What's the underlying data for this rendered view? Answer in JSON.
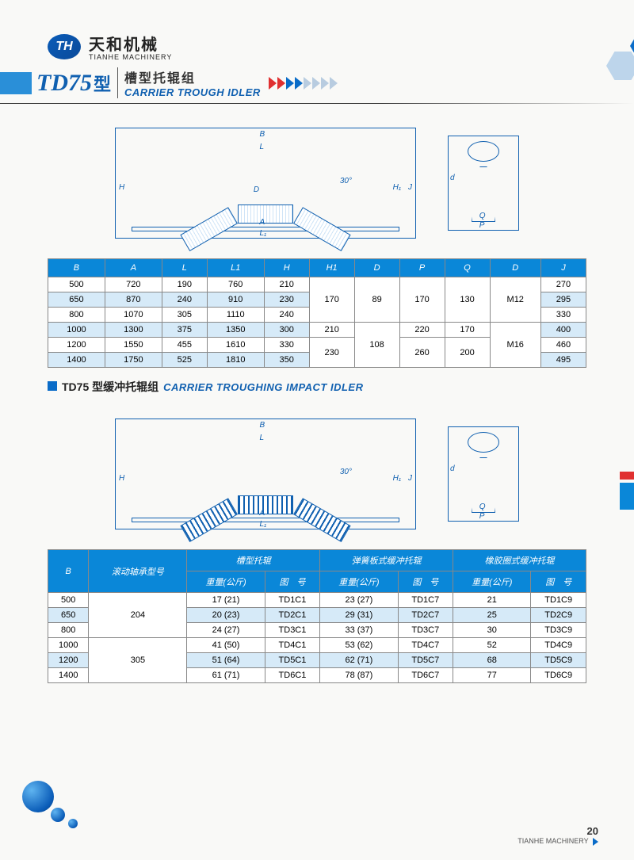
{
  "logo": {
    "badge": "TH",
    "zh": "天和机械",
    "en": "TIANHE MACHINERY"
  },
  "title": {
    "model": "TD75",
    "model_suffix": "型",
    "zh": "槽型托辊组",
    "en": "CARRIER TROUGH IDLER"
  },
  "chevron_colors": [
    "#e03030",
    "#e03030",
    "#0a6cc8",
    "#0a6cc8",
    "#b8cce0",
    "#b8cce0",
    "#b8cce0",
    "#b8cce0"
  ],
  "diagram1_labels": {
    "B": "B",
    "L": "L",
    "H": "H",
    "D": "D",
    "A": "A",
    "L1": "L₁",
    "H1": "H₁",
    "J": "J",
    "angle": "30°",
    "d": "d",
    "Q": "Q",
    "P": "P"
  },
  "table1": {
    "headers": [
      "B",
      "A",
      "L",
      "L1",
      "H",
      "H1",
      "D",
      "P",
      "Q",
      "D",
      "J"
    ],
    "rows": [
      [
        "500",
        "720",
        "190",
        "760",
        "210",
        "170",
        "89",
        "170",
        "130",
        "M12",
        "270"
      ],
      [
        "650",
        "870",
        "240",
        "910",
        "230",
        "170",
        "89",
        "170",
        "130",
        "M12",
        "295"
      ],
      [
        "800",
        "1070",
        "305",
        "1110",
        "240",
        "170",
        "89",
        "170",
        "130",
        "M12",
        "330"
      ],
      [
        "1000",
        "1300",
        "375",
        "1350",
        "300",
        "210",
        "108",
        "220",
        "170",
        "M16",
        "400"
      ],
      [
        "1200",
        "1550",
        "455",
        "1610",
        "330",
        "230",
        "108",
        "260",
        "200",
        "M16",
        "460"
      ],
      [
        "1400",
        "1750",
        "525",
        "1810",
        "350",
        "230",
        "108",
        "260",
        "200",
        "M16",
        "495"
      ]
    ],
    "merges": {
      "H1": [
        {
          "start": 0,
          "span": 3,
          "val": "170"
        },
        {
          "start": 3,
          "span": 1,
          "val": "210"
        },
        {
          "start": 4,
          "span": 2,
          "val": "230"
        }
      ],
      "Dcol": [
        {
          "start": 0,
          "span": 3,
          "val": "89"
        },
        {
          "start": 3,
          "span": 3,
          "val": "108"
        }
      ],
      "P": [
        {
          "start": 0,
          "span": 3,
          "val": "170"
        },
        {
          "start": 3,
          "span": 1,
          "val": "220"
        },
        {
          "start": 4,
          "span": 2,
          "val": "260"
        }
      ],
      "Q": [
        {
          "start": 0,
          "span": 3,
          "val": "130"
        },
        {
          "start": 3,
          "span": 1,
          "val": "170"
        },
        {
          "start": 4,
          "span": 2,
          "val": "200"
        }
      ],
      "D2": [
        {
          "start": 0,
          "span": 3,
          "val": "M12"
        },
        {
          "start": 3,
          "span": 3,
          "val": "M16"
        }
      ]
    },
    "alt_rows": [
      1,
      3,
      5
    ]
  },
  "section2": {
    "prefix": "TD75",
    "zh": "型缓冲托辊组",
    "en": "CARRIER TROUGHING IMPACT IDLER"
  },
  "table2": {
    "top_headers": [
      "B",
      "滚动轴承型号",
      "槽型托辊",
      "弹簧板式缓冲托辊",
      "橡胶圈式缓冲托辊"
    ],
    "sub_headers": [
      "重量(公斤)",
      "图　号",
      "重量(公斤)",
      "图　号",
      "重量(公斤)",
      "图　号"
    ],
    "rows": [
      {
        "B": "500",
        "bearing": "204",
        "w1": "17 (21)",
        "c1": "TD1C1",
        "w2": "23 (27)",
        "c2": "TD1C7",
        "w3": "21",
        "c3": "TD1C9"
      },
      {
        "B": "650",
        "bearing": "204",
        "w1": "20 (23)",
        "c1": "TD2C1",
        "w2": "29 (31)",
        "c2": "TD2C7",
        "w3": "25",
        "c3": "TD2C9"
      },
      {
        "B": "800",
        "bearing": "204",
        "w1": "24 (27)",
        "c1": "TD3C1",
        "w2": "33 (37)",
        "c2": "TD3C7",
        "w3": "30",
        "c3": "TD3C9"
      },
      {
        "B": "1000",
        "bearing": "305",
        "w1": "41 (50)",
        "c1": "TD4C1",
        "w2": "53 (62)",
        "c2": "TD4C7",
        "w3": "52",
        "c3": "TD4C9"
      },
      {
        "B": "1200",
        "bearing": "305",
        "w1": "51 (64)",
        "c1": "TD5C1",
        "w2": "62 (71)",
        "c2": "TD5C7",
        "w3": "68",
        "c3": "TD5C9"
      },
      {
        "B": "1400",
        "bearing": "305",
        "w1": "61 (71)",
        "c1": "TD6C1",
        "w2": "78 (87)",
        "c2": "TD6C7",
        "w3": "77",
        "c3": "TD6C9"
      }
    ],
    "bearing_merges": [
      {
        "start": 0,
        "span": 3,
        "val": "204"
      },
      {
        "start": 3,
        "span": 3,
        "val": "305"
      }
    ],
    "alt_rows": [
      1,
      4
    ]
  },
  "footer": {
    "page": "20",
    "company": "TIANHE MACHINERY"
  }
}
